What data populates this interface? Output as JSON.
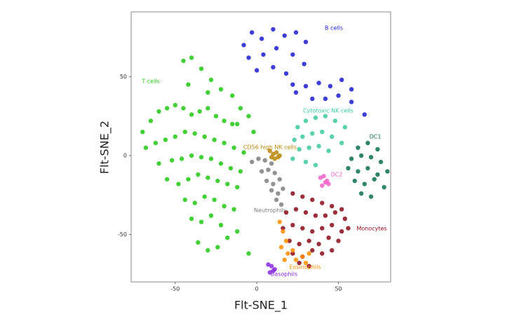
{
  "chart_data": {
    "type": "scatter",
    "x_label": "Flt-SNE_1",
    "y_label": "Flt-SNE_2",
    "xlim": [
      -77,
      82
    ],
    "ylim": [
      -80,
      91
    ],
    "xticks": [
      -50,
      0,
      50
    ],
    "yticks": [
      -50,
      0,
      50
    ],
    "series": [
      {
        "name": "B cells",
        "color": "#1c1ccf",
        "x": [
          -8,
          -3,
          3,
          10,
          17,
          24,
          30,
          -5,
          4,
          12,
          22,
          29,
          0,
          10,
          18,
          22,
          24,
          30,
          38,
          45,
          52,
          58,
          34,
          42,
          50,
          58,
          66
        ],
        "y": [
          70,
          78,
          74,
          80,
          76,
          78,
          72,
          62,
          64,
          68,
          64,
          58,
          54,
          56,
          52,
          45,
          40,
          44,
          46,
          44,
          48,
          42,
          36,
          36,
          38,
          34,
          26
        ]
      },
      {
        "name": "T cells",
        "color": "#22c814",
        "x": [
          -45,
          -40,
          -34,
          -28,
          -42,
          -30,
          -22,
          -15,
          -10,
          -5,
          -12,
          -2,
          -70,
          -65,
          -60,
          -55,
          -50,
          -45,
          -40,
          -35,
          -30,
          -25,
          -20,
          -15,
          -68,
          -62,
          -56,
          -50,
          -44,
          -38,
          -32,
          -26,
          -20,
          -14,
          -8,
          -60,
          -52,
          -46,
          -40,
          -34,
          -28,
          -22,
          -16,
          -10,
          -55,
          -48,
          -42,
          -36,
          -30,
          -24,
          -18,
          -12,
          -44,
          -38,
          -32,
          -26,
          -20,
          -14,
          -40,
          -34,
          -28,
          -22,
          -36,
          -30,
          -24,
          -18,
          -12,
          -5
        ],
        "y": [
          60,
          62,
          55,
          48,
          45,
          40,
          42,
          38,
          30,
          25,
          20,
          15,
          15,
          22,
          28,
          30,
          32,
          30,
          26,
          28,
          30,
          25,
          22,
          20,
          5,
          8,
          10,
          12,
          15,
          14,
          12,
          10,
          8,
          5,
          2,
          -5,
          -3,
          -2,
          0,
          -1,
          -2,
          -5,
          -8,
          -10,
          -15,
          -18,
          -15,
          -12,
          -14,
          -16,
          -18,
          -20,
          -28,
          -30,
          -26,
          -28,
          -32,
          -34,
          -40,
          -42,
          -38,
          -44,
          -55,
          -60,
          -58,
          -52,
          -48,
          -62
        ]
      },
      {
        "name": "Cytotoxic NK cells",
        "color": "#3cc8a0",
        "x": [
          25,
          30,
          36,
          42,
          48,
          54,
          23,
          28,
          34,
          40,
          46,
          52,
          26,
          32,
          38,
          44,
          22,
          30,
          36
        ],
        "y": [
          18,
          22,
          24,
          25,
          22,
          18,
          10,
          12,
          14,
          15,
          12,
          8,
          4,
          5,
          6,
          3,
          -2,
          -4,
          -6
        ]
      },
      {
        "name": "DC1",
        "color": "#0b6e4f",
        "x": [
          62,
          68,
          74,
          58,
          64,
          70,
          76,
          56,
          62,
          68,
          74,
          80,
          60,
          66,
          72,
          78,
          64,
          70
        ],
        "y": [
          5,
          8,
          4,
          -2,
          0,
          -1,
          -4,
          -8,
          -10,
          -8,
          -12,
          -10,
          -16,
          -18,
          -15,
          -20,
          -24,
          -26
        ]
      },
      {
        "name": "CD56 high NK cells",
        "color": "#b8860b",
        "x": [
          8,
          10,
          12,
          14,
          9,
          11,
          13
        ],
        "y": [
          3,
          1,
          2,
          0,
          -1,
          -2,
          -1
        ]
      },
      {
        "name": "DC2",
        "color": "#f060c8",
        "x": [
          39,
          41,
          43,
          44,
          40,
          42
        ],
        "y": [
          -14,
          -13,
          -16,
          -18,
          -19,
          -17
        ]
      },
      {
        "name": "Neutrophils",
        "color": "#7f7f7f",
        "x": [
          -3,
          1,
          5,
          9,
          3,
          7,
          11,
          6,
          10,
          14,
          9,
          13,
          16,
          12,
          15
        ],
        "y": [
          -4,
          -2,
          -3,
          -5,
          -10,
          -9,
          -11,
          -16,
          -18,
          -15,
          -22,
          -24,
          -21,
          -28,
          -31
        ]
      },
      {
        "name": "Monocytes",
        "color": "#8b0a1a",
        "x": [
          22,
          28,
          34,
          40,
          46,
          52,
          18,
          24,
          30,
          36,
          42,
          48,
          54,
          56,
          16,
          22,
          28,
          34,
          40,
          46,
          52,
          20,
          26,
          32,
          38,
          44,
          50,
          22,
          28,
          34,
          40,
          46,
          26,
          32
        ],
        "y": [
          -24,
          -26,
          -28,
          -30,
          -32,
          -34,
          -36,
          -34,
          -36,
          -38,
          -38,
          -36,
          -40,
          -46,
          -46,
          -44,
          -46,
          -48,
          -46,
          -44,
          -48,
          -54,
          -56,
          -54,
          -56,
          -52,
          -54,
          -62,
          -64,
          -60,
          -62,
          -60,
          -68,
          -70
        ]
      },
      {
        "name": "Eosinophils",
        "color": "#ff8c00",
        "x": [
          14,
          16,
          18,
          15,
          19,
          22,
          17,
          24,
          28,
          30,
          32
        ],
        "y": [
          -42,
          -48,
          -54,
          -58,
          -62,
          -60,
          -66,
          -66,
          -64,
          -68,
          -62
        ]
      },
      {
        "name": "Basophils",
        "color": "#8a2be2",
        "x": [
          7,
          9,
          11,
          8,
          10
        ],
        "y": [
          -69,
          -70,
          -72,
          -74,
          -73
        ]
      }
    ]
  }
}
